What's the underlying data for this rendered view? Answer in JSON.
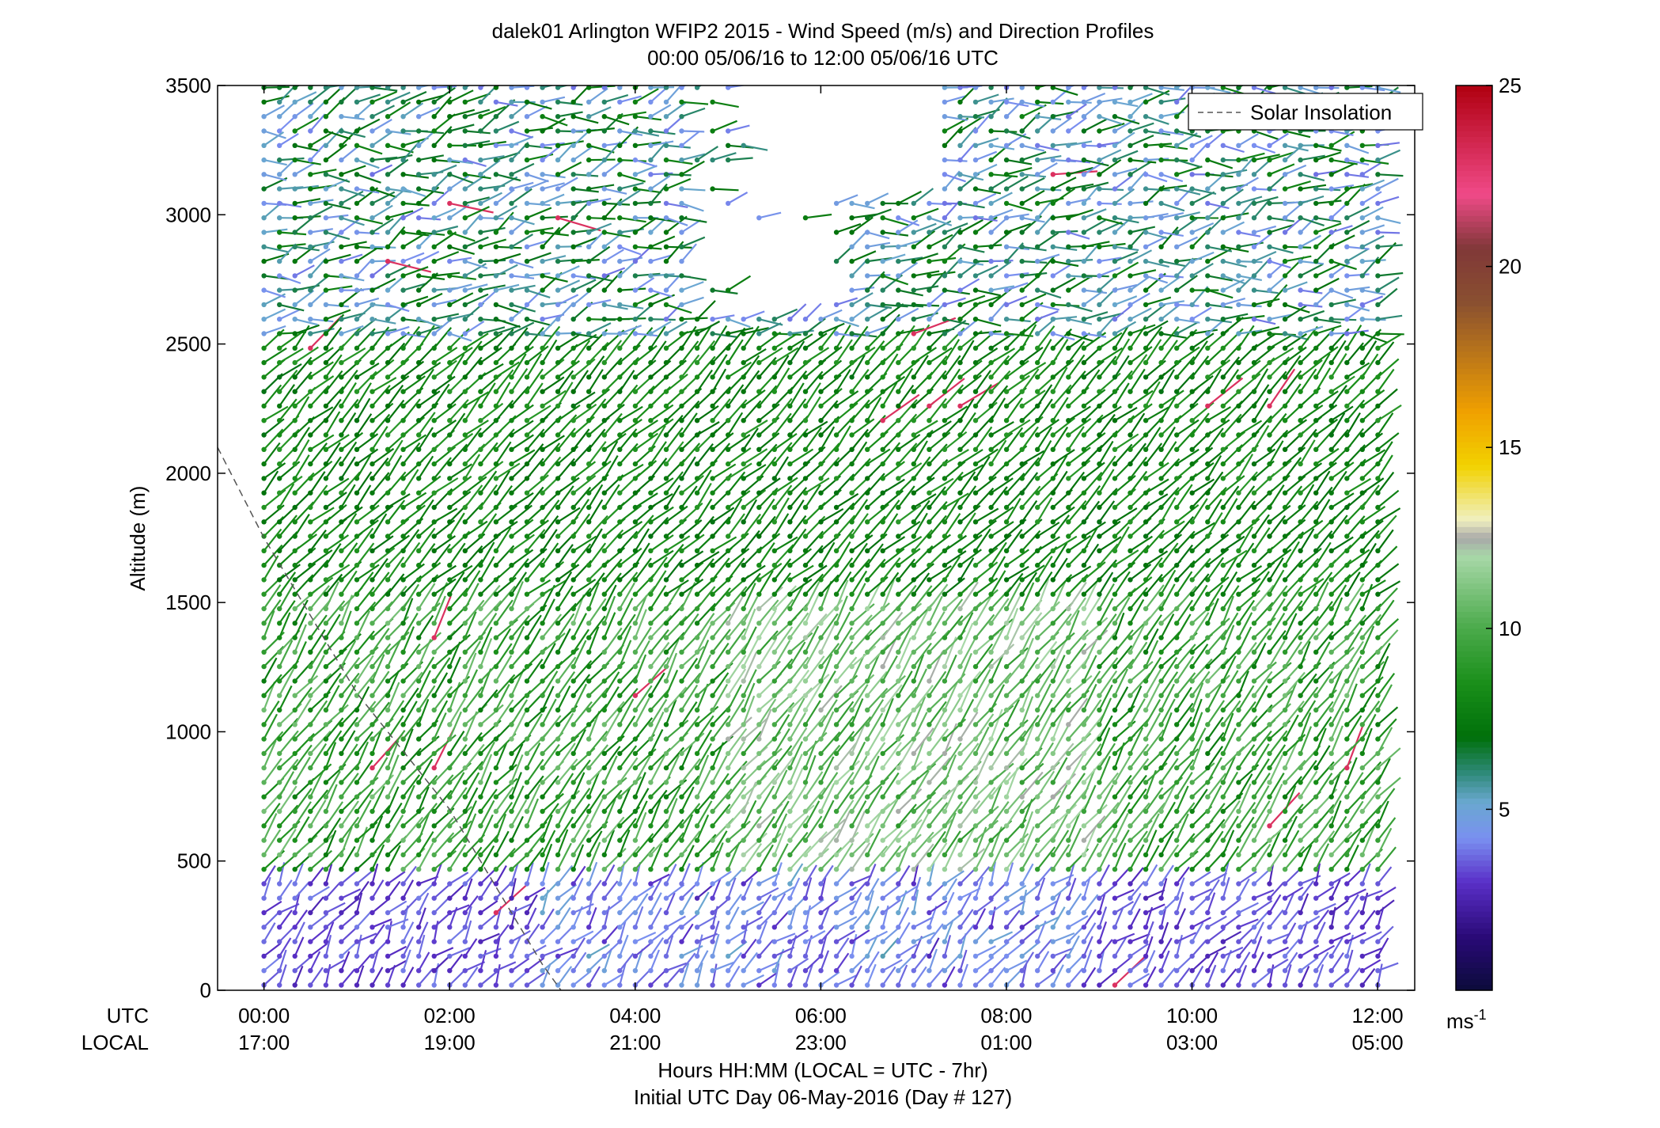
{
  "chart_data": {
    "type": "wind_barb_profile",
    "title": "dalek01 Arlington WFIP2 2015 - Wind Speed (m/s) and Direction Profiles",
    "subtitle": "00:00 05/06/16 to 12:00 05/06/16  UTC",
    "ylabel": "Altitude (m)",
    "xlabel": "Hours HH:MM  (LOCAL = UTC - 7hr)",
    "xlabel2": "Initial UTC Day 06-May-2016 (Day # 127)",
    "row_label_utc": "UTC",
    "row_label_local": "LOCAL",
    "xlim_hours": [
      -0.5,
      12.4
    ],
    "ylim": [
      0,
      3500
    ],
    "y_ticks": [
      0,
      500,
      1000,
      1500,
      2000,
      2500,
      3000,
      3500
    ],
    "x_ticks_hours": [
      0,
      2,
      4,
      6,
      8,
      10,
      12
    ],
    "x_tick_labels_utc": [
      "00:00",
      "02:00",
      "04:00",
      "06:00",
      "08:00",
      "10:00",
      "12:00"
    ],
    "x_tick_labels_local": [
      "17:00",
      "19:00",
      "21:00",
      "23:00",
      "01:00",
      "03:00",
      "05:00"
    ],
    "legend": {
      "entries": [
        "Solar Insolation"
      ],
      "location": "top-right",
      "line_style": "dashed",
      "color": "#666666"
    },
    "colorbar": {
      "min": 0,
      "max": 25,
      "ticks": [
        5,
        10,
        15,
        20,
        25
      ],
      "unit_label": "ms",
      "unit_exp": "-1",
      "colormap_stops": [
        {
          "v": 0,
          "c": "#0b0b3a"
        },
        {
          "v": 1.5,
          "c": "#2a0a78"
        },
        {
          "v": 3,
          "c": "#5a30c8"
        },
        {
          "v": 4.2,
          "c": "#7a90f0"
        },
        {
          "v": 5.2,
          "c": "#6aa8d0"
        },
        {
          "v": 6,
          "c": "#2f8a7a"
        },
        {
          "v": 7,
          "c": "#00700a"
        },
        {
          "v": 8.5,
          "c": "#1a8f1a"
        },
        {
          "v": 10,
          "c": "#4aaa4a"
        },
        {
          "v": 12,
          "c": "#a8d8a8"
        },
        {
          "v": 12.5,
          "c": "#a8a8a8"
        },
        {
          "v": 13,
          "c": "#f0f0c0"
        },
        {
          "v": 14.5,
          "c": "#f2d200"
        },
        {
          "v": 16,
          "c": "#f0a000"
        },
        {
          "v": 19,
          "c": "#8a5030"
        },
        {
          "v": 20.5,
          "c": "#803838"
        },
        {
          "v": 22,
          "c": "#f04a88"
        },
        {
          "v": 25,
          "c": "#b00010"
        }
      ]
    },
    "solar_insolation_curve": [
      [
        -0.5,
        2100
      ],
      [
        0.0,
        1750
      ],
      [
        1.0,
        1150
      ],
      [
        2.0,
        700
      ],
      [
        3.0,
        100
      ],
      [
        3.2,
        0
      ]
    ],
    "profile_start_hour": 0,
    "profile_end_hour": 12.1,
    "profile_step_hours": 0.1667,
    "gate_step_m": 56,
    "speed_regimes": [
      {
        "alt": [
          0,
          450
        ],
        "speed": [
          2,
          4
        ],
        "dir": [
          190,
          250
        ]
      },
      {
        "alt": [
          450,
          1500
        ],
        "speed": [
          6,
          11
        ],
        "dir": [
          200,
          230
        ]
      },
      {
        "alt": [
          1500,
          2500
        ],
        "speed": [
          6,
          9
        ],
        "dir": [
          210,
          240
        ]
      },
      {
        "alt": [
          2500,
          3500
        ],
        "speed": [
          2,
          8
        ],
        "dir": [
          220,
          290
        ]
      }
    ]
  }
}
